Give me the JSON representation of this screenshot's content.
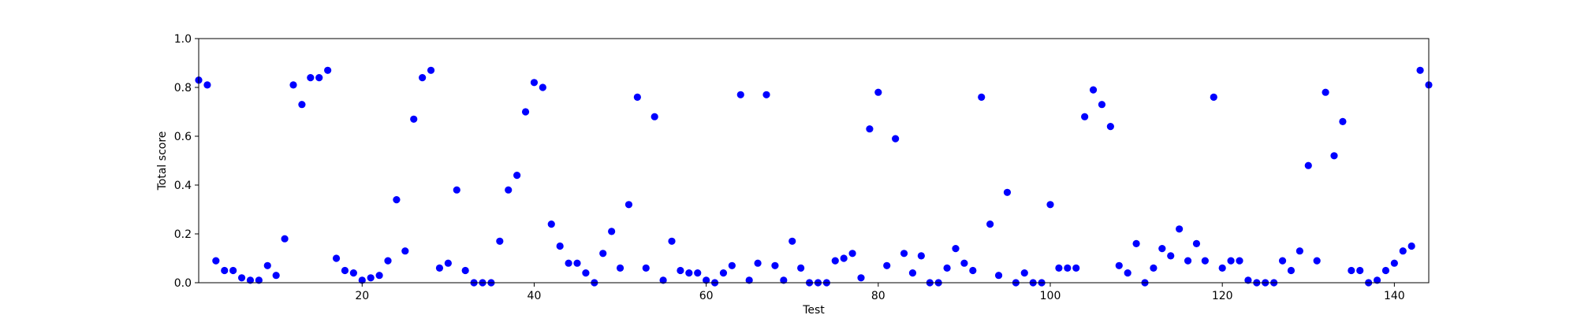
{
  "chart_data": {
    "type": "scatter",
    "title": "",
    "xlabel": "Test",
    "ylabel": "Total score",
    "xlim": [
      1,
      144
    ],
    "ylim": [
      0.0,
      1.0
    ],
    "x_ticks": [
      20,
      40,
      60,
      80,
      100,
      120,
      140
    ],
    "x_tick_labels": [
      "20",
      "40",
      "60",
      "80",
      "100",
      "120",
      "140"
    ],
    "y_ticks": [
      0.0,
      0.2,
      0.4,
      0.6,
      0.8,
      1.0
    ],
    "y_tick_labels": [
      "0.0",
      "0.2",
      "0.4",
      "0.6",
      "0.8",
      "1.0"
    ],
    "grid": false,
    "marker_color": "#0000ff",
    "points": [
      [
        1,
        0.83
      ],
      [
        2,
        0.81
      ],
      [
        3,
        0.09
      ],
      [
        4,
        0.05
      ],
      [
        5,
        0.05
      ],
      [
        6,
        0.02
      ],
      [
        7,
        0.01
      ],
      [
        8,
        0.01
      ],
      [
        9,
        0.07
      ],
      [
        10,
        0.03
      ],
      [
        11,
        0.18
      ],
      [
        12,
        0.81
      ],
      [
        13,
        0.73
      ],
      [
        14,
        0.84
      ],
      [
        15,
        0.84
      ],
      [
        16,
        0.87
      ],
      [
        17,
        0.1
      ],
      [
        18,
        0.05
      ],
      [
        19,
        0.04
      ],
      [
        20,
        0.01
      ],
      [
        21,
        0.02
      ],
      [
        22,
        0.03
      ],
      [
        23,
        0.09
      ],
      [
        24,
        0.34
      ],
      [
        25,
        0.13
      ],
      [
        26,
        0.67
      ],
      [
        27,
        0.84
      ],
      [
        28,
        0.87
      ],
      [
        29,
        0.06
      ],
      [
        30,
        0.08
      ],
      [
        31,
        0.38
      ],
      [
        32,
        0.05
      ],
      [
        33,
        0.0
      ],
      [
        34,
        0.0
      ],
      [
        35,
        0.0
      ],
      [
        36,
        0.17
      ],
      [
        37,
        0.38
      ],
      [
        38,
        0.44
      ],
      [
        39,
        0.7
      ],
      [
        40,
        0.82
      ],
      [
        41,
        0.8
      ],
      [
        42,
        0.24
      ],
      [
        43,
        0.15
      ],
      [
        44,
        0.08
      ],
      [
        45,
        0.08
      ],
      [
        46,
        0.04
      ],
      [
        47,
        0.0
      ],
      [
        48,
        0.12
      ],
      [
        49,
        0.21
      ],
      [
        50,
        0.06
      ],
      [
        51,
        0.32
      ],
      [
        52,
        0.76
      ],
      [
        53,
        0.06
      ],
      [
        54,
        0.68
      ],
      [
        55,
        0.01
      ],
      [
        56,
        0.17
      ],
      [
        57,
        0.05
      ],
      [
        58,
        0.04
      ],
      [
        59,
        0.04
      ],
      [
        60,
        0.01
      ],
      [
        61,
        0.0
      ],
      [
        62,
        0.04
      ],
      [
        63,
        0.07
      ],
      [
        64,
        0.77
      ],
      [
        65,
        0.01
      ],
      [
        66,
        0.08
      ],
      [
        67,
        0.77
      ],
      [
        68,
        0.07
      ],
      [
        69,
        0.01
      ],
      [
        70,
        0.17
      ],
      [
        71,
        0.06
      ],
      [
        72,
        0.0
      ],
      [
        73,
        0.0
      ],
      [
        74,
        0.0
      ],
      [
        75,
        0.09
      ],
      [
        76,
        0.1
      ],
      [
        77,
        0.12
      ],
      [
        78,
        0.02
      ],
      [
        79,
        0.63
      ],
      [
        80,
        0.78
      ],
      [
        81,
        0.07
      ],
      [
        82,
        0.59
      ],
      [
        83,
        0.12
      ],
      [
        84,
        0.04
      ],
      [
        85,
        0.11
      ],
      [
        86,
        0.0
      ],
      [
        87,
        0.0
      ],
      [
        88,
        0.06
      ],
      [
        89,
        0.14
      ],
      [
        90,
        0.08
      ],
      [
        91,
        0.05
      ],
      [
        92,
        0.76
      ],
      [
        93,
        0.24
      ],
      [
        94,
        0.03
      ],
      [
        95,
        0.37
      ],
      [
        96,
        0.0
      ],
      [
        97,
        0.04
      ],
      [
        98,
        0.0
      ],
      [
        99,
        0.0
      ],
      [
        100,
        0.32
      ],
      [
        101,
        0.06
      ],
      [
        102,
        0.06
      ],
      [
        103,
        0.06
      ],
      [
        104,
        0.68
      ],
      [
        105,
        0.79
      ],
      [
        106,
        0.73
      ],
      [
        107,
        0.64
      ],
      [
        108,
        0.07
      ],
      [
        109,
        0.04
      ],
      [
        110,
        0.16
      ],
      [
        111,
        0.0
      ],
      [
        112,
        0.06
      ],
      [
        113,
        0.14
      ],
      [
        114,
        0.11
      ],
      [
        115,
        0.22
      ],
      [
        116,
        0.09
      ],
      [
        117,
        0.16
      ],
      [
        118,
        0.09
      ],
      [
        119,
        0.76
      ],
      [
        120,
        0.06
      ],
      [
        121,
        0.09
      ],
      [
        122,
        0.09
      ],
      [
        123,
        0.01
      ],
      [
        124,
        0.0
      ],
      [
        125,
        0.0
      ],
      [
        126,
        0.0
      ],
      [
        127,
        0.09
      ],
      [
        128,
        0.05
      ],
      [
        129,
        0.13
      ],
      [
        130,
        0.48
      ],
      [
        131,
        0.09
      ],
      [
        132,
        0.78
      ],
      [
        133,
        0.52
      ],
      [
        134,
        0.66
      ],
      [
        135,
        0.05
      ],
      [
        136,
        0.05
      ],
      [
        137,
        0.0
      ],
      [
        138,
        0.01
      ],
      [
        139,
        0.05
      ],
      [
        140,
        0.08
      ],
      [
        141,
        0.13
      ],
      [
        142,
        0.15
      ],
      [
        143,
        0.87
      ],
      [
        144,
        0.81
      ]
    ]
  }
}
